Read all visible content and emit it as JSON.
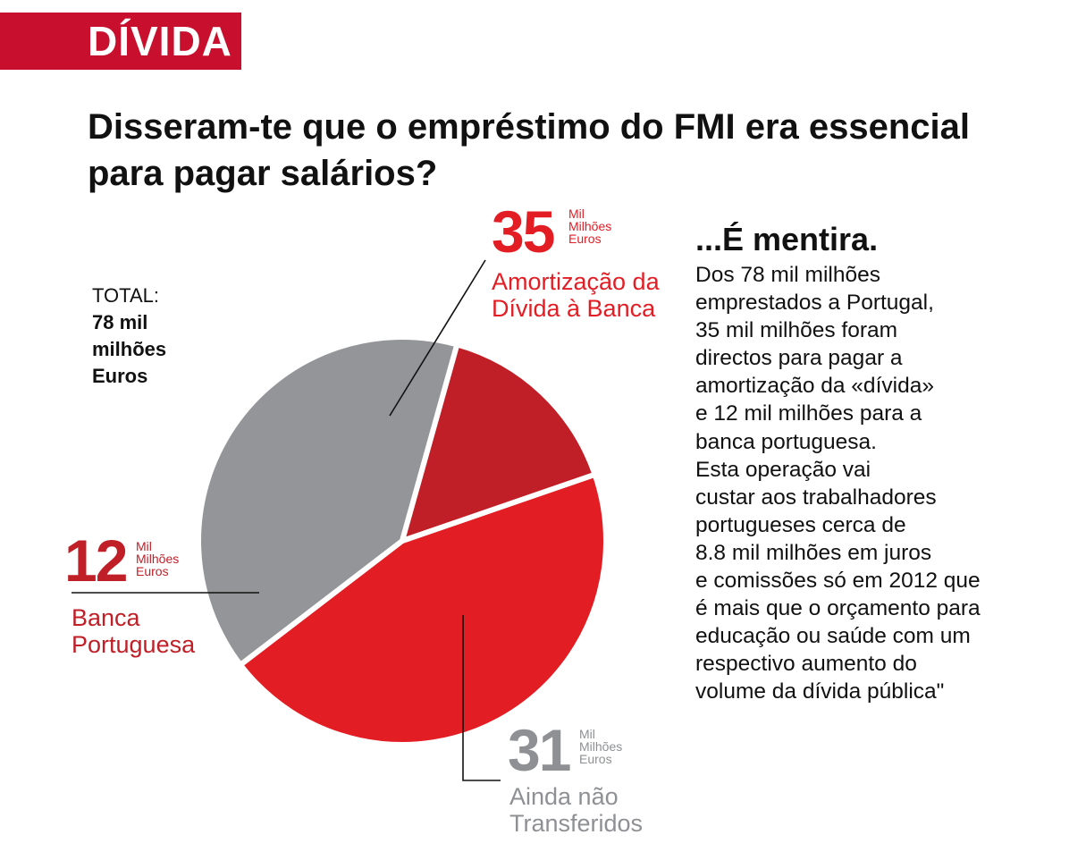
{
  "tag": "DÍVIDA",
  "headline": "Disseram-te que o empréstimo do FMI era essencial para pagar salários?",
  "total": {
    "label": "TOTAL:",
    "value": "78 mil milhões Euros"
  },
  "side": {
    "heading": "...É mentira.",
    "body": "Dos 78 mil milhões\nemprestados a Portugal,\n35 mil milhões foram\ndirectos para pagar a\namortização da «dívida»\ne 12 mil milhões para a\nbanca portuguesa.\nEsta operação vai\ncustar aos trabalhadores\nportugueses cerca de\n8.8 mil milhões em juros\ne comissões só em 2012 que\né mais que o orçamento para\neducação ou saúde com um\nrespectivo aumento do\nvolume da dívida pública\""
  },
  "colors": {
    "red": "#e31d24",
    "dark_red": "#c01f27",
    "gray": "#939598",
    "tag_bg": "#c8102e"
  },
  "chart_data": {
    "type": "pie",
    "title": "Disseram-te que o empréstimo do FMI era essencial para pagar salários?",
    "total": 78,
    "unit": "Mil Milhões Euros",
    "slices": [
      {
        "label": "Amortização da Dívida à Banca",
        "value": 35,
        "value_text": "35",
        "unit": "Mil\nMilhões\nEuros",
        "color": "#e31d24"
      },
      {
        "label": "Ainda não Transferidos",
        "value": 31,
        "value_text": "31",
        "unit": "Mil\nMilhões\nEuros",
        "color": "#939598"
      },
      {
        "label": "Banca Portuguesa",
        "value": 12,
        "value_text": "12",
        "unit": "Mil\nMilhões\nEuros",
        "color": "#c01f27"
      }
    ]
  }
}
